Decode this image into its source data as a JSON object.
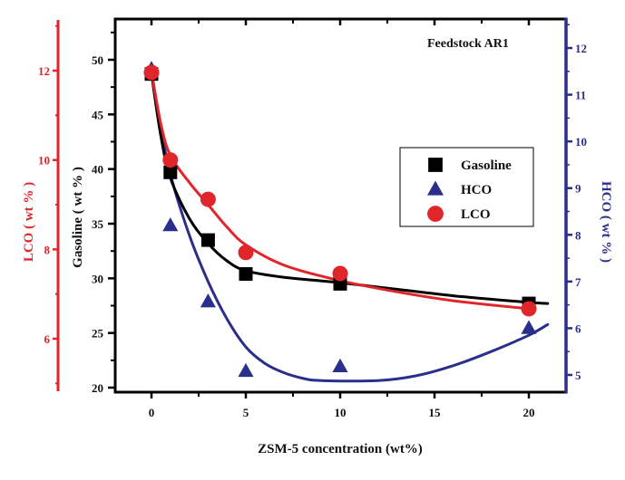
{
  "chart_data": {
    "type": "scatter",
    "title": "",
    "annotation": "Feedstock AR1",
    "xlabel": "ZSM-5 concentration (wt%)",
    "x_ticks": [
      "0",
      "5",
      "10",
      "15",
      "20"
    ],
    "xlim": [
      -2,
      22.5
    ],
    "axes": {
      "gasoline": {
        "label": "Gasoline ( wt % )",
        "side": "left-inner",
        "color": "#000000",
        "ylim": [
          19.5,
          53.5
        ],
        "ticks": [
          "20",
          "25",
          "30",
          "35",
          "40",
          "45",
          "50"
        ]
      },
      "lco": {
        "label": "LCO ( wt % )",
        "side": "left-outer",
        "color": "#e0262b",
        "ylim": [
          4.85,
          13.2
        ],
        "ticks": [
          "6",
          "8",
          "10",
          "12"
        ]
      },
      "hco": {
        "label": "HCO ( wt % )",
        "side": "right",
        "color": "#2b2f8c",
        "ylim": [
          4.6,
          12.6
        ],
        "ticks": [
          "5",
          "6",
          "7",
          "8",
          "9",
          "10",
          "11",
          "12"
        ]
      }
    },
    "legend": {
      "placement": "center-right",
      "entries": [
        {
          "name": "Gasoline",
          "marker": "square",
          "color": "#000000"
        },
        {
          "name": "HCO",
          "marker": "triangle",
          "color": "#2b2f8c"
        },
        {
          "name": "LCO",
          "marker": "circle",
          "color": "#e0262b"
        }
      ]
    },
    "series": [
      {
        "name": "Gasoline",
        "axis": "gasoline",
        "marker": "square",
        "color": "#000000",
        "x": [
          0,
          1,
          3,
          5,
          10,
          20
        ],
        "values": [
          48.7,
          39.7,
          33.5,
          30.4,
          29.5,
          27.7
        ],
        "fit": [
          [
            0,
            48.7
          ],
          [
            0.5,
            43
          ],
          [
            1,
            39.2
          ],
          [
            2,
            35.5
          ],
          [
            3,
            33.2
          ],
          [
            4,
            31.6
          ],
          [
            5,
            30.7
          ],
          [
            7,
            30.1
          ],
          [
            10,
            29.6
          ],
          [
            13,
            29.0
          ],
          [
            16,
            28.4
          ],
          [
            20,
            27.8
          ],
          [
            21,
            27.7
          ]
        ]
      },
      {
        "name": "HCO",
        "axis": "hco",
        "marker": "triangle",
        "color": "#2b2f8c",
        "x": [
          0,
          1,
          3,
          5,
          10,
          20
        ],
        "values": [
          11.55,
          8.2,
          6.57,
          5.08,
          5.18,
          6.0
        ],
        "fit": [
          [
            0,
            11.5
          ],
          [
            0.5,
            10.3
          ],
          [
            1,
            9.3
          ],
          [
            2,
            8.0
          ],
          [
            3,
            7.0
          ],
          [
            4,
            6.2
          ],
          [
            5,
            5.6
          ],
          [
            6,
            5.25
          ],
          [
            7,
            5.05
          ],
          [
            8,
            4.93
          ],
          [
            9,
            4.88
          ],
          [
            12,
            4.88
          ],
          [
            14,
            4.98
          ],
          [
            16,
            5.2
          ],
          [
            18,
            5.5
          ],
          [
            20,
            5.85
          ],
          [
            21,
            6.08
          ]
        ]
      },
      {
        "name": "LCO",
        "axis": "lco",
        "marker": "circle",
        "color": "#e0262b",
        "x": [
          0,
          1,
          3,
          5,
          10,
          20
        ],
        "values": [
          11.96,
          10.0,
          9.12,
          7.93,
          7.46,
          6.67
        ],
        "fit": [
          [
            0,
            11.96
          ],
          [
            0.5,
            10.8
          ],
          [
            1,
            10.1
          ],
          [
            2,
            9.5
          ],
          [
            3,
            9.0
          ],
          [
            4,
            8.5
          ],
          [
            5,
            8.1
          ],
          [
            7,
            7.65
          ],
          [
            10,
            7.3
          ],
          [
            13,
            7.05
          ],
          [
            16,
            6.85
          ],
          [
            20,
            6.67
          ]
        ]
      }
    ]
  }
}
